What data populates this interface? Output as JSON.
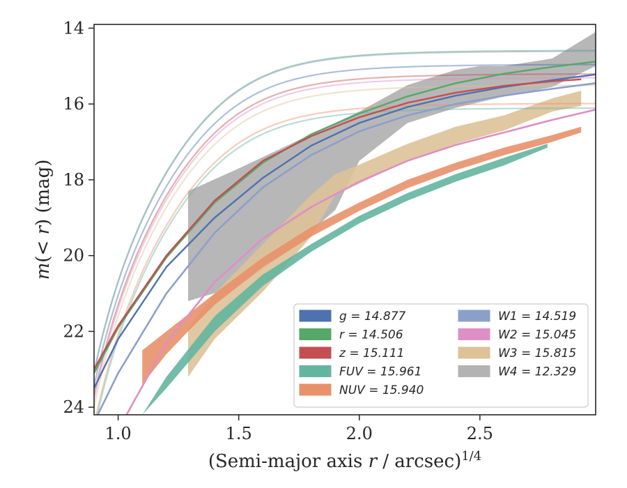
{
  "chart_data": {
    "type": "line",
    "xlabel": "(Semi-major axis r / arcsec)^1/4",
    "ylabel": "m(< r) (mag)",
    "xlim": [
      0.9,
      2.98
    ],
    "ylim": [
      24.2,
      13.9
    ],
    "y_inverted": true,
    "grid": false,
    "legend_position": "bottom-right",
    "xticks": [
      "1.0",
      "1.5",
      "2.0",
      "2.5"
    ],
    "yticks": [
      "14",
      "16",
      "18",
      "20",
      "22",
      "24"
    ],
    "series": [
      {
        "name": "g",
        "label_value": "14.877",
        "color": "#4c72b0",
        "kind": "line",
        "model_m0": 14.95,
        "x": [
          0.9,
          1.0,
          1.2,
          1.4,
          1.6,
          1.8,
          2.0,
          2.2,
          2.4,
          2.6,
          2.8,
          2.98
        ],
        "y": [
          23.5,
          22.2,
          20.3,
          19.0,
          17.95,
          17.1,
          16.5,
          16.08,
          15.78,
          15.55,
          15.37,
          15.22
        ]
      },
      {
        "name": "r",
        "label_value": "14.506",
        "color": "#55a868",
        "kind": "line",
        "model_m0": 14.58,
        "x": [
          0.9,
          1.0,
          1.2,
          1.4,
          1.6,
          1.8,
          2.0,
          2.2,
          2.4,
          2.6,
          2.8,
          2.98
        ],
        "y": [
          23.1,
          21.9,
          20.05,
          18.6,
          17.55,
          16.8,
          16.25,
          15.8,
          15.45,
          15.2,
          15.02,
          14.88
        ]
      },
      {
        "name": "z",
        "label_value": "15.111",
        "color": "#c44e52",
        "kind": "line",
        "model_m0": 15.2,
        "x": [
          0.9,
          1.0,
          1.2,
          1.4,
          1.6,
          1.8,
          2.0,
          2.2,
          2.4,
          2.6,
          2.8,
          2.92
        ],
        "y": [
          23.0,
          21.85,
          20.0,
          18.55,
          17.5,
          16.85,
          16.35,
          15.97,
          15.7,
          15.52,
          15.4,
          15.35
        ]
      },
      {
        "name": "FUV",
        "label_value": "15.961",
        "color": "#64b5a0",
        "kind": "band",
        "model_m0": 16.1,
        "x": [
          1.1,
          1.2,
          1.4,
          1.6,
          1.8,
          2.0,
          2.2,
          2.4,
          2.6,
          2.78
        ],
        "y_lo": [
          24.2,
          23.2,
          21.6,
          20.5,
          19.7,
          18.95,
          18.35,
          17.85,
          17.42,
          17.05
        ],
        "y_hi": [
          24.2,
          23.5,
          22.0,
          20.8,
          19.9,
          19.15,
          18.55,
          18.05,
          17.62,
          17.15
        ]
      },
      {
        "name": "NUV",
        "label_value": "15.940",
        "color": "#e8916a",
        "kind": "band",
        "model_m0": 15.98,
        "x": [
          1.1,
          1.2,
          1.29,
          1.4,
          1.6,
          1.8,
          2.0,
          2.2,
          2.4,
          2.6,
          2.8,
          2.92
        ],
        "y_lo": [
          22.5,
          22.0,
          21.55,
          21.0,
          20.05,
          19.25,
          18.6,
          18.0,
          17.55,
          17.15,
          16.82,
          16.6
        ],
        "y_hi": [
          23.4,
          22.6,
          22.0,
          21.3,
          20.3,
          19.5,
          18.82,
          18.22,
          17.75,
          17.35,
          17.0,
          16.75
        ]
      },
      {
        "name": "W1",
        "label_value": "14.519",
        "color": "#8c9fcb",
        "kind": "line",
        "model_m0": 14.6,
        "x": [
          0.9,
          1.0,
          1.2,
          1.4,
          1.6,
          1.8,
          2.0,
          2.2,
          2.4,
          2.6,
          2.8,
          2.98
        ],
        "y": [
          24.4,
          23.1,
          21.0,
          19.4,
          18.2,
          17.35,
          16.72,
          16.3,
          16.0,
          15.78,
          15.6,
          15.45
        ]
      },
      {
        "name": "W2",
        "label_value": "15.045",
        "color": "#dd8fc6",
        "kind": "line",
        "model_m0": 15.3,
        "x": [
          1.0,
          1.2,
          1.4,
          1.6,
          1.8,
          2.0,
          2.2,
          2.4,
          2.6,
          2.8,
          2.98
        ],
        "y": [
          24.6,
          22.3,
          20.7,
          19.55,
          18.72,
          18.05,
          17.5,
          17.08,
          16.75,
          16.42,
          16.15
        ]
      },
      {
        "name": "W3",
        "label_value": "15.815",
        "color": "#ddc298",
        "kind": "band",
        "model_m0": 15.5,
        "x": [
          1.29,
          1.4,
          1.6,
          1.8,
          1.9,
          2.0,
          2.2,
          2.4,
          2.6,
          2.8,
          2.92
        ],
        "y_lo": [
          21.9,
          21.0,
          19.7,
          18.4,
          17.85,
          17.6,
          17.05,
          16.6,
          16.3,
          15.85,
          15.65
        ],
        "y_hi": [
          23.2,
          22.2,
          20.95,
          19.5,
          18.4,
          18.1,
          17.5,
          17.05,
          16.7,
          16.2,
          16.05
        ]
      },
      {
        "name": "W4",
        "label_value": "12.329",
        "color": "#b3b3b3",
        "kind": "band",
        "x": [
          1.29,
          1.5,
          1.7,
          1.9,
          2.0,
          2.2,
          2.4,
          2.5,
          2.6,
          2.8,
          2.98
        ],
        "y_lo": [
          18.3,
          17.7,
          17.1,
          16.5,
          16.2,
          15.5,
          15.1,
          15.0,
          15.0,
          14.8,
          14.1
        ],
        "y_hi": [
          21.2,
          20.8,
          19.9,
          18.8,
          17.5,
          16.5,
          16.1,
          15.95,
          15.8,
          15.55,
          15.0
        ]
      }
    ]
  }
}
